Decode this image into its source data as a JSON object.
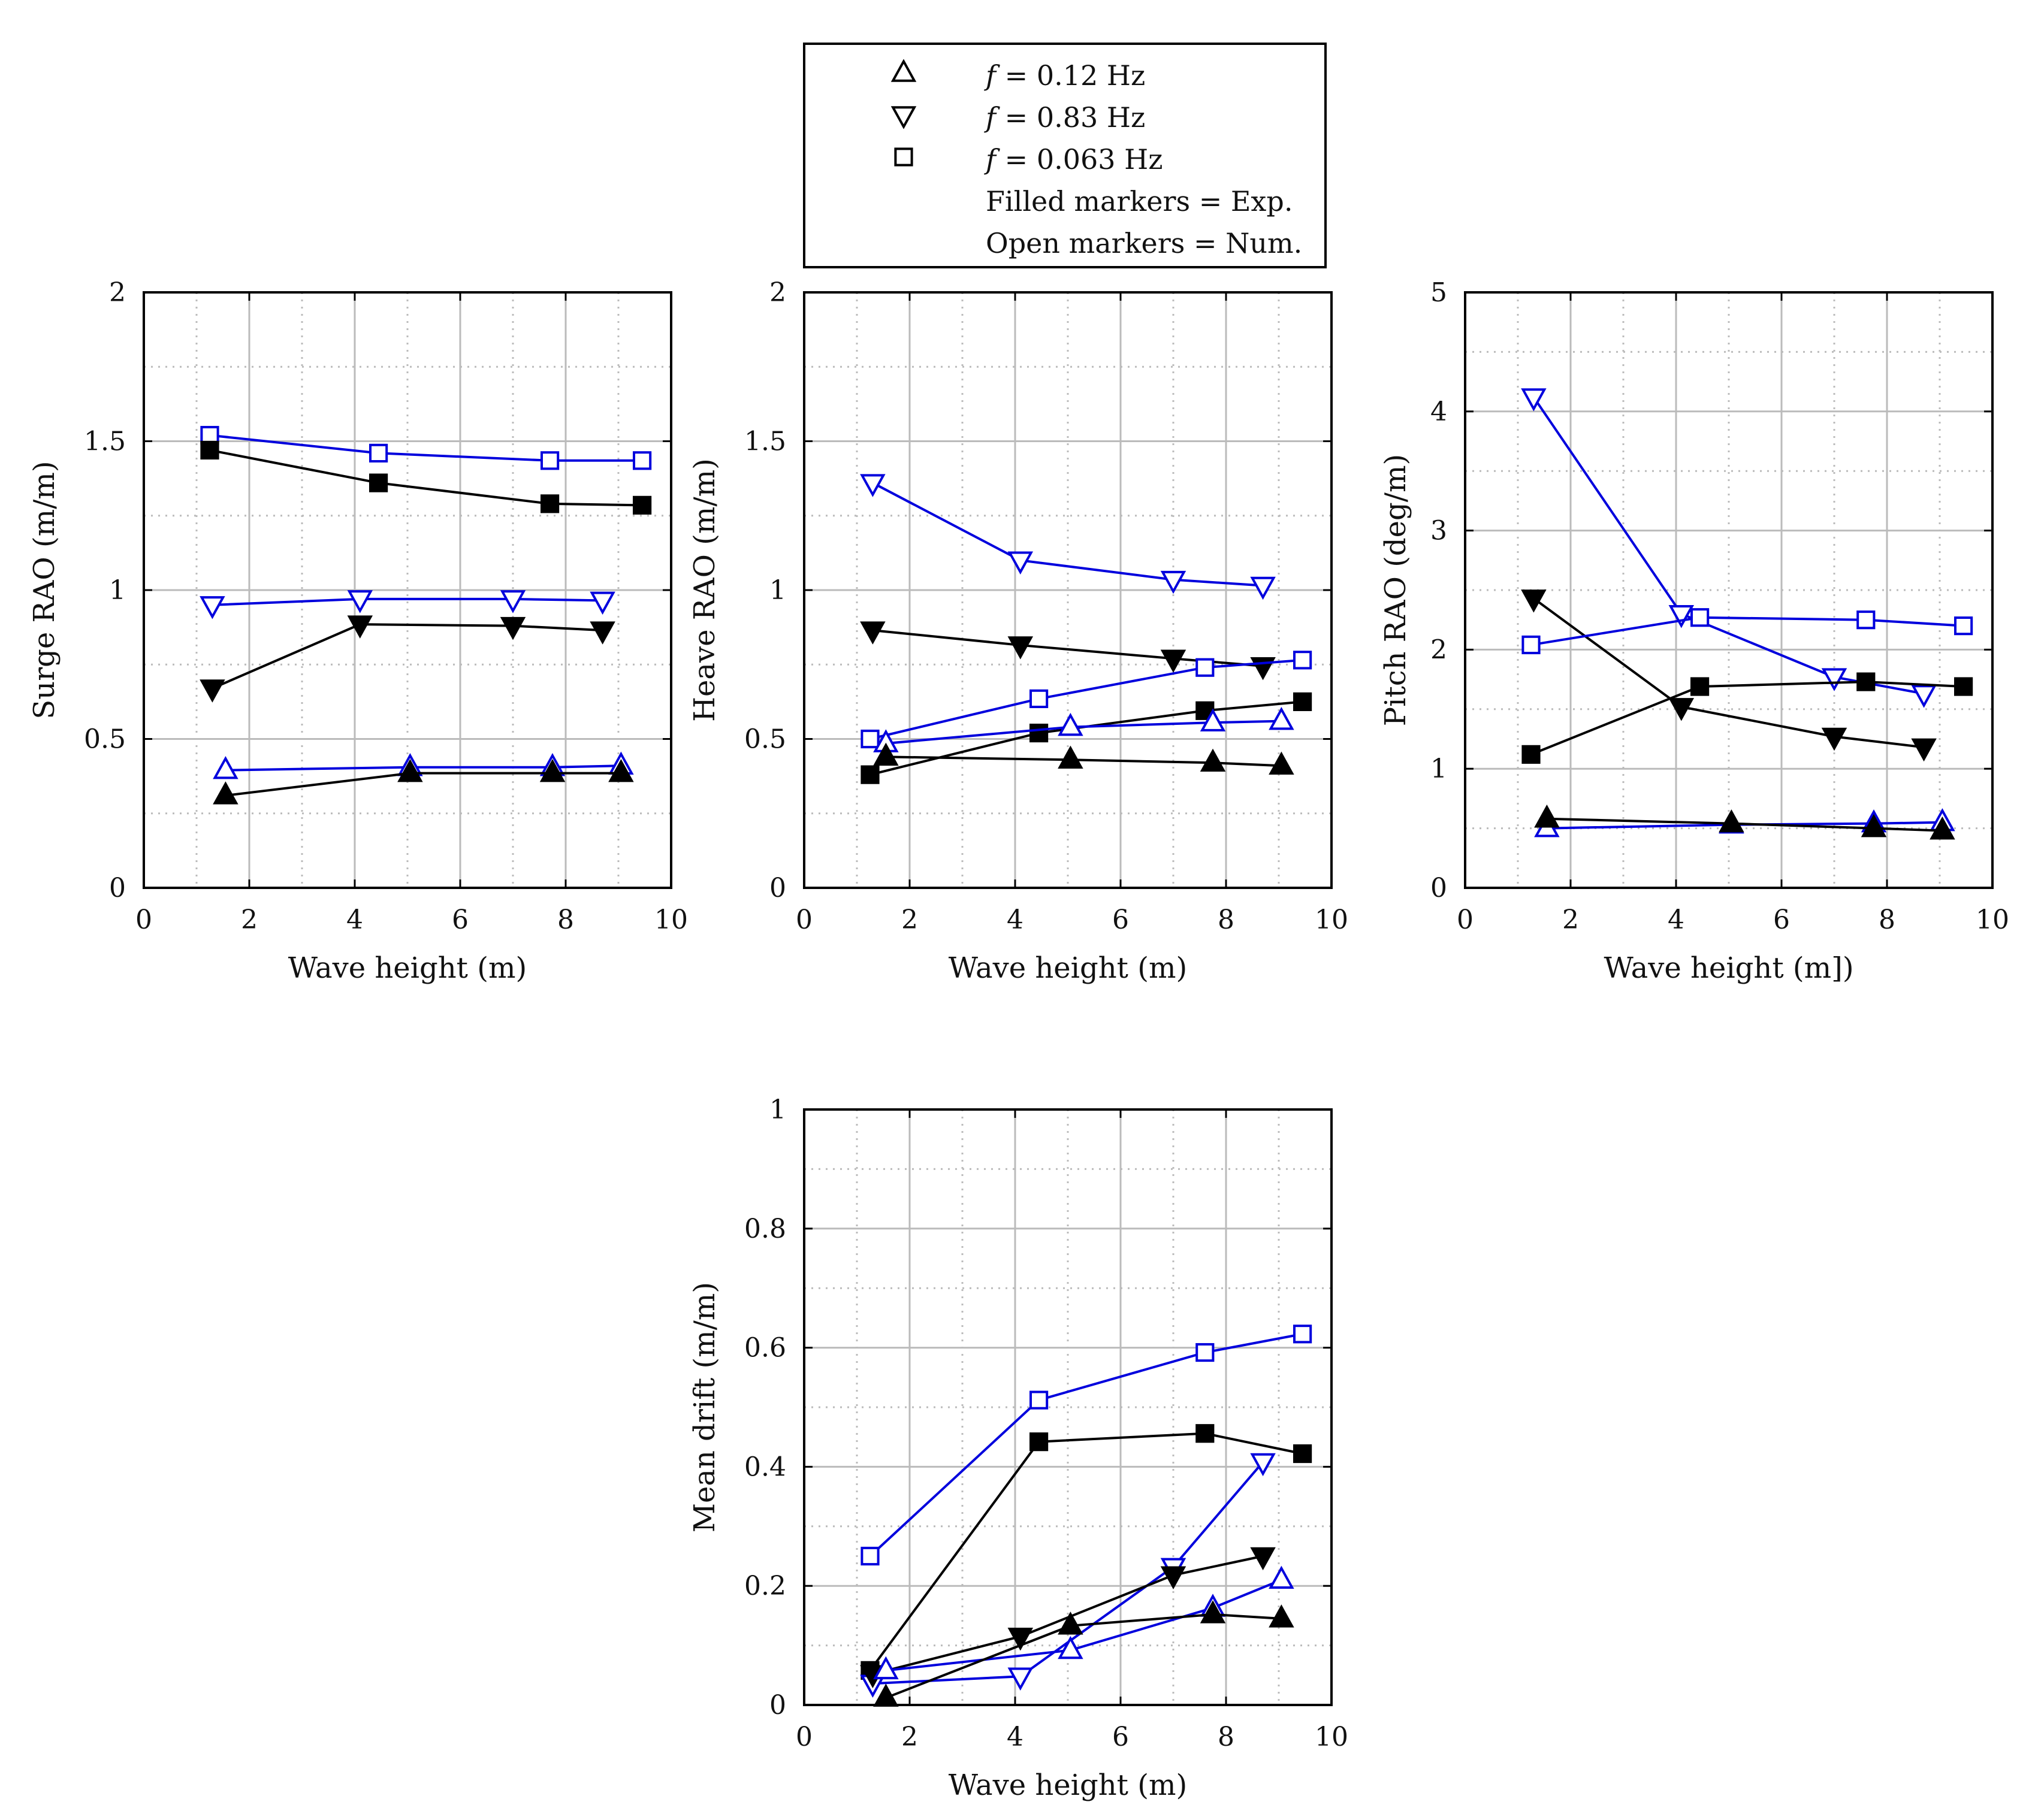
{
  "legend": {
    "entries": [
      {
        "marker": "up",
        "prefix": "f",
        "text": " = 0.12 Hz"
      },
      {
        "marker": "down",
        "prefix": "f",
        "text": " = 0.83 Hz"
      },
      {
        "marker": "square",
        "prefix": "f",
        "text": " = 0.063 Hz"
      },
      {
        "marker": "none",
        "prefix": "",
        "text": "Filled markers = Exp."
      },
      {
        "marker": "none",
        "prefix": "",
        "text": "Open markers = Num."
      }
    ]
  },
  "colors": {
    "experiment": "#000000",
    "numerical": "#0000dd",
    "grid": "#bbbbbb",
    "axis": "#000000"
  },
  "chart_data": [
    {
      "id": "surge",
      "type": "line",
      "xlabel": "Wave height (m)",
      "ylabel": "Surge RAO (m/m)",
      "xlim": [
        0,
        10
      ],
      "ylim": [
        0,
        2
      ],
      "xticks": [
        0,
        2,
        4,
        6,
        8,
        10
      ],
      "xtick_labels": [
        "0",
        "2",
        "4",
        "6",
        "8",
        "10"
      ],
      "yticks": [
        0,
        0.5,
        1,
        1.5,
        2
      ],
      "ytick_labels": [
        "0",
        "0.5",
        "1",
        "1.5",
        "2"
      ],
      "series": [
        {
          "name": "f = 0.063 Hz Num.",
          "color": "#0000dd",
          "marker": "square",
          "filled": false,
          "x": [
            1.25,
            4.45,
            7.7,
            9.45
          ],
          "y": [
            1.52,
            1.46,
            1.435,
            1.435
          ]
        },
        {
          "name": "f = 0.063 Hz Exp.",
          "color": "#000000",
          "marker": "square",
          "filled": true,
          "x": [
            1.25,
            4.45,
            7.7,
            9.45
          ],
          "y": [
            1.47,
            1.36,
            1.29,
            1.285
          ]
        },
        {
          "name": "f = 0.83 Hz Num.",
          "color": "#0000dd",
          "marker": "down",
          "filled": false,
          "x": [
            1.3,
            4.1,
            7.0,
            8.7
          ],
          "y": [
            0.95,
            0.97,
            0.97,
            0.965
          ]
        },
        {
          "name": "f = 0.83 Hz Exp.",
          "color": "#000000",
          "marker": "down",
          "filled": true,
          "x": [
            1.3,
            4.1,
            7.0,
            8.7
          ],
          "y": [
            0.67,
            0.885,
            0.88,
            0.865
          ]
        },
        {
          "name": "f = 0.12 Hz Num.",
          "color": "#0000dd",
          "marker": "up",
          "filled": false,
          "x": [
            1.55,
            5.05,
            7.75,
            9.05
          ],
          "y": [
            0.395,
            0.405,
            0.405,
            0.41
          ]
        },
        {
          "name": "f = 0.12 Hz Exp.",
          "color": "#000000",
          "marker": "up",
          "filled": true,
          "x": [
            1.55,
            5.05,
            7.75,
            9.05
          ],
          "y": [
            0.31,
            0.385,
            0.385,
            0.385
          ]
        }
      ]
    },
    {
      "id": "heave",
      "type": "line",
      "xlabel": "Wave height (m)",
      "ylabel": "Heave RAO (m/m)",
      "xlim": [
        0,
        10
      ],
      "ylim": [
        0,
        2
      ],
      "xticks": [
        0,
        2,
        4,
        6,
        8,
        10
      ],
      "xtick_labels": [
        "0",
        "2",
        "4",
        "6",
        "8",
        "10"
      ],
      "yticks": [
        0,
        0.5,
        1,
        1.5,
        2
      ],
      "ytick_labels": [
        "0",
        "0.5",
        "1",
        "1.5",
        "2"
      ],
      "series": [
        {
          "name": "f = 0.83 Hz Num.",
          "color": "#0000dd",
          "marker": "down",
          "filled": false,
          "x": [
            1.3,
            4.1,
            7.0,
            8.7
          ],
          "y": [
            1.36,
            1.1,
            1.035,
            1.015
          ]
        },
        {
          "name": "f = 0.83 Hz Exp.",
          "color": "#000000",
          "marker": "down",
          "filled": true,
          "x": [
            1.3,
            4.1,
            7.0,
            8.7
          ],
          "y": [
            0.865,
            0.815,
            0.77,
            0.745
          ]
        },
        {
          "name": "f = 0.063 Hz Num.",
          "color": "#0000dd",
          "marker": "square",
          "filled": false,
          "x": [
            1.25,
            4.45,
            7.6,
            9.45
          ],
          "y": [
            0.5,
            0.635,
            0.74,
            0.765
          ]
        },
        {
          "name": "f = 0.063 Hz Exp.",
          "color": "#000000",
          "marker": "square",
          "filled": true,
          "x": [
            1.25,
            4.45,
            7.6,
            9.45
          ],
          "y": [
            0.38,
            0.52,
            0.595,
            0.625
          ]
        },
        {
          "name": "f = 0.12 Hz Num.",
          "color": "#0000dd",
          "marker": "up",
          "filled": false,
          "x": [
            1.55,
            5.05,
            7.75,
            9.05
          ],
          "y": [
            0.485,
            0.54,
            0.555,
            0.56
          ]
        },
        {
          "name": "f = 0.12 Hz Exp.",
          "color": "#000000",
          "marker": "up",
          "filled": true,
          "x": [
            1.55,
            5.05,
            7.75,
            9.05
          ],
          "y": [
            0.44,
            0.43,
            0.42,
            0.41
          ]
        }
      ]
    },
    {
      "id": "pitch",
      "type": "line",
      "xlabel": "Wave height (m])",
      "ylabel": "Pitch RAO (deg/m)",
      "xlim": [
        0,
        10
      ],
      "ylim": [
        0,
        5
      ],
      "xticks": [
        0,
        2,
        4,
        6,
        8,
        10
      ],
      "xtick_labels": [
        "0",
        "2",
        "4",
        "6",
        "8",
        "10"
      ],
      "yticks": [
        0,
        1,
        2,
        3,
        4,
        5
      ],
      "ytick_labels": [
        "0",
        "1",
        "2",
        "3",
        "4",
        "5"
      ],
      "series": [
        {
          "name": "f = 0.83 Hz Num.",
          "color": "#0000dd",
          "marker": "down",
          "filled": false,
          "x": [
            1.3,
            4.1,
            7.0,
            8.7
          ],
          "y": [
            4.12,
            2.3,
            1.77,
            1.63
          ]
        },
        {
          "name": "f = 0.83 Hz Exp.",
          "color": "#000000",
          "marker": "down",
          "filled": true,
          "x": [
            1.3,
            4.1,
            7.0,
            8.7
          ],
          "y": [
            2.43,
            1.52,
            1.27,
            1.18
          ]
        },
        {
          "name": "f = 0.063 Hz Num.",
          "color": "#0000dd",
          "marker": "square",
          "filled": false,
          "x": [
            1.25,
            4.45,
            7.6,
            9.45
          ],
          "y": [
            2.04,
            2.27,
            2.25,
            2.2
          ]
        },
        {
          "name": "f = 0.063 Hz Exp.",
          "color": "#000000",
          "marker": "square",
          "filled": true,
          "x": [
            1.25,
            4.45,
            7.6,
            9.45
          ],
          "y": [
            1.12,
            1.69,
            1.73,
            1.69
          ]
        },
        {
          "name": "f = 0.12 Hz Num.",
          "color": "#0000dd",
          "marker": "up",
          "filled": false,
          "x": [
            1.55,
            5.05,
            7.75,
            9.05
          ],
          "y": [
            0.5,
            0.53,
            0.54,
            0.55
          ]
        },
        {
          "name": "f = 0.12 Hz Exp.",
          "color": "#000000",
          "marker": "up",
          "filled": true,
          "x": [
            1.55,
            5.05,
            7.75,
            9.05
          ],
          "y": [
            0.58,
            0.54,
            0.5,
            0.48
          ]
        }
      ]
    },
    {
      "id": "drift",
      "type": "line",
      "xlabel": "Wave height (m)",
      "ylabel": "Mean drift (m/m)",
      "xlim": [
        0,
        10
      ],
      "ylim": [
        0,
        1
      ],
      "xticks": [
        0,
        2,
        4,
        6,
        8,
        10
      ],
      "xtick_labels": [
        "0",
        "2",
        "4",
        "6",
        "8",
        "10"
      ],
      "yticks": [
        0,
        0.2,
        0.4,
        0.6,
        0.8,
        1
      ],
      "ytick_labels": [
        "0",
        "0.2",
        "0.4",
        "0.6",
        "0.8",
        "1"
      ],
      "series": [
        {
          "name": "f = 0.063 Hz Num.",
          "color": "#0000dd",
          "marker": "square",
          "filled": false,
          "x": [
            1.25,
            4.45,
            7.6,
            9.45
          ],
          "y": [
            0.25,
            0.512,
            0.592,
            0.623
          ]
        },
        {
          "name": "f = 0.063 Hz Exp.",
          "color": "#000000",
          "marker": "square",
          "filled": true,
          "x": [
            1.25,
            4.45,
            7.6,
            9.45
          ],
          "y": [
            0.058,
            0.442,
            0.456,
            0.422
          ]
        },
        {
          "name": "f = 0.83 Hz Num.",
          "color": "#0000dd",
          "marker": "down",
          "filled": false,
          "x": [
            1.3,
            4.1,
            7.0,
            8.7
          ],
          "y": [
            0.036,
            0.048,
            0.232,
            0.408
          ]
        },
        {
          "name": "f = 0.83 Hz Exp.",
          "color": "#000000",
          "marker": "down",
          "filled": true,
          "x": [
            1.3,
            4.1,
            7.0,
            8.7
          ],
          "y": [
            0.052,
            0.115,
            0.218,
            0.25
          ]
        },
        {
          "name": "f = 0.12 Hz Num.",
          "color": "#0000dd",
          "marker": "up",
          "filled": false,
          "x": [
            1.55,
            5.05,
            7.75,
            9.05
          ],
          "y": [
            0.058,
            0.092,
            0.163,
            0.21
          ]
        },
        {
          "name": "f = 0.12 Hz Exp.",
          "color": "#000000",
          "marker": "up",
          "filled": true,
          "x": [
            1.55,
            5.05,
            7.75,
            9.05
          ],
          "y": [
            0.012,
            0.133,
            0.152,
            0.145
          ]
        }
      ]
    }
  ]
}
